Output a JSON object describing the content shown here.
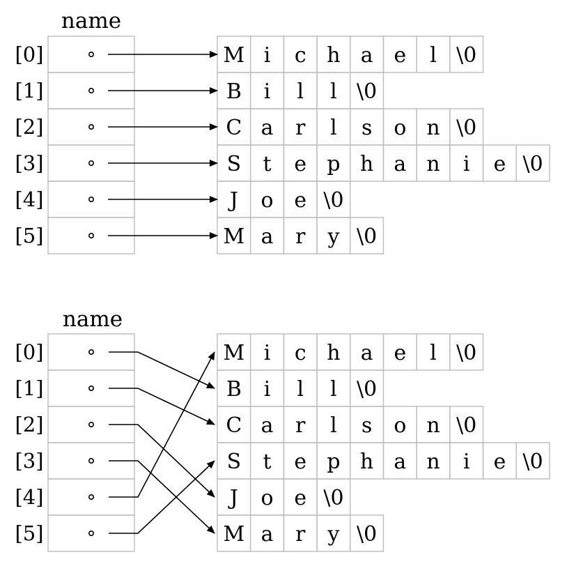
{
  "colors": {
    "background": "#ffffff",
    "grid": "#c0c0c0",
    "ink": "#000000"
  },
  "diagrams": [
    {
      "id": "before",
      "array_label": "name",
      "indices": [
        "[0]",
        "[1]",
        "[2]",
        "[3]",
        "[4]",
        "[5]"
      ],
      "strings": [
        [
          "M",
          "i",
          "c",
          "h",
          "a",
          "e",
          "l",
          "\\0"
        ],
        [
          "B",
          "i",
          "l",
          "l",
          "\\0"
        ],
        [
          "C",
          "a",
          "r",
          "l",
          "s",
          "o",
          "n",
          "\\0"
        ],
        [
          "S",
          "t",
          "e",
          "p",
          "h",
          "a",
          "n",
          "i",
          "e",
          "\\0"
        ],
        [
          "J",
          "o",
          "e",
          "\\0"
        ],
        [
          "M",
          "a",
          "r",
          "y",
          "\\0"
        ]
      ],
      "pointer_targets": [
        0,
        1,
        2,
        3,
        4,
        5
      ]
    },
    {
      "id": "after",
      "array_label": "name",
      "indices": [
        "[0]",
        "[1]",
        "[2]",
        "[3]",
        "[4]",
        "[5]"
      ],
      "strings": [
        [
          "M",
          "i",
          "c",
          "h",
          "a",
          "e",
          "l",
          "\\0"
        ],
        [
          "B",
          "i",
          "l",
          "l",
          "\\0"
        ],
        [
          "C",
          "a",
          "r",
          "l",
          "s",
          "o",
          "n",
          "\\0"
        ],
        [
          "S",
          "t",
          "e",
          "p",
          "h",
          "a",
          "n",
          "i",
          "e",
          "\\0"
        ],
        [
          "J",
          "o",
          "e",
          "\\0"
        ],
        [
          "M",
          "a",
          "r",
          "y",
          "\\0"
        ]
      ],
      "pointer_targets": [
        1,
        2,
        4,
        5,
        0,
        3
      ]
    }
  ]
}
